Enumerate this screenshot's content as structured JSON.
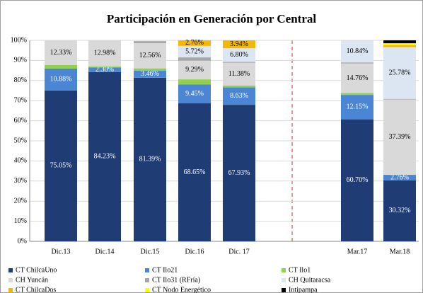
{
  "chart_data": {
    "type": "bar",
    "stacked": true,
    "title": "Participación en Generación por Central",
    "categories": [
      "Dic.13",
      "Dic.14",
      "Dic.15",
      "Dic.16",
      "Dic. 17",
      "Mar.17",
      "Mar.18"
    ],
    "ylim": [
      0,
      100
    ],
    "yticks": [
      {
        "value": 0,
        "label": "0%"
      },
      {
        "value": 10,
        "label": "10%"
      },
      {
        "value": 20,
        "label": "20%"
      },
      {
        "value": 30,
        "label": "30%"
      },
      {
        "value": 40,
        "label": "40%"
      },
      {
        "value": 50,
        "label": "50%"
      },
      {
        "value": 60,
        "label": "60%"
      },
      {
        "value": 70,
        "label": "70%"
      },
      {
        "value": 80,
        "label": "80%"
      },
      {
        "value": 90,
        "label": "90%"
      },
      {
        "value": 100,
        "label": "100%"
      }
    ],
    "grid": true,
    "series": [
      {
        "name": "CT ChilcaUno",
        "color": "#1f3c74",
        "values": [
          75.05,
          84.23,
          81.39,
          68.65,
          67.93,
          60.7,
          30.32
        ],
        "value_labels": [
          "75.05%",
          "84.23%",
          "81.39%",
          "68.65%",
          "67.93%",
          "60.70%",
          "30.32%"
        ]
      },
      {
        "name": "CT Ilo21",
        "color": "#4a86d4",
        "values": [
          10.88,
          2.3,
          3.46,
          9.45,
          8.63,
          12.15,
          2.76
        ],
        "value_labels": [
          "10.88%",
          "2.30%",
          "3.46%",
          "9.45%",
          "8.63%",
          "12.15%",
          "2.76%"
        ]
      },
      {
        "name": "CT Ilo1",
        "color": "#92d050",
        "values": [
          1.74,
          0.49,
          1.2,
          2.5,
          0.9,
          0.9,
          0.1
        ]
      },
      {
        "name": "CH Yuncán",
        "color": "#d9d9d9",
        "values": [
          12.33,
          12.98,
          12.56,
          9.29,
          11.38,
          14.76,
          37.39
        ],
        "value_labels": [
          "12.33%",
          "12.98%",
          "12.56%",
          "9.29%",
          "11.38%",
          "14.76%",
          "37.39%"
        ]
      },
      {
        "name": "CT Ilo31 (RFría)",
        "color": "#a6a6a6",
        "values": [
          0,
          0,
          1.0,
          1.63,
          0.42,
          0.5,
          0.3
        ]
      },
      {
        "name": "CH Quitaracsa",
        "color": "#dce6f2",
        "values": [
          0,
          0,
          0.39,
          5.72,
          6.8,
          10.84,
          25.78
        ],
        "value_labels": [
          null,
          null,
          null,
          "5.72%",
          "6.80%",
          "10.84%",
          "25.78%"
        ]
      },
      {
        "name": "CT ChilcaDos",
        "color": "#f5b800",
        "values": [
          0,
          0,
          0,
          2.76,
          3.94,
          0,
          0.9
        ],
        "value_labels": [
          null,
          null,
          null,
          "2.76%",
          "3.94%",
          null,
          null
        ]
      },
      {
        "name": "CT Nodo Energético",
        "color": "#ffff00",
        "values": [
          0,
          0,
          0,
          0,
          0,
          0,
          1.0
        ]
      },
      {
        "name": "Intipampa",
        "color": "#000000",
        "values": [
          0,
          0,
          0,
          0,
          0,
          0,
          1.45
        ]
      }
    ]
  }
}
